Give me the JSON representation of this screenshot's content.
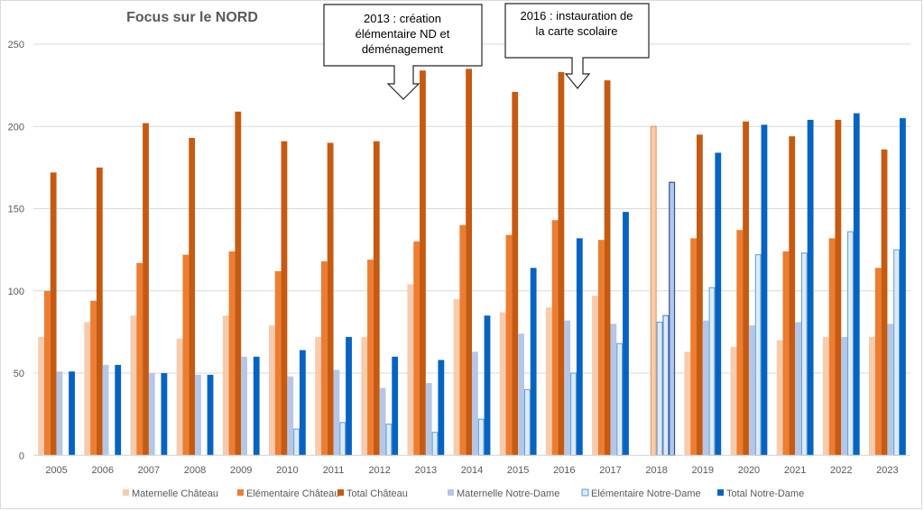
{
  "chart_data": {
    "type": "bar",
    "title": "Focus sur le NORD",
    "xlabel": "",
    "ylabel": "",
    "ylim": [
      0,
      250
    ],
    "yticks": [
      0,
      50,
      100,
      150,
      200,
      250
    ],
    "grid": true,
    "legend_position": "bottom",
    "categories": [
      "2005",
      "2006",
      "2007",
      "2008",
      "2009",
      "2010",
      "2011",
      "2012",
      "2013",
      "2014",
      "2015",
      "2016",
      "2017",
      "2018",
      "2019",
      "2020",
      "2021",
      "2022",
      "2023"
    ],
    "series": [
      {
        "name": "Maternelle Château",
        "color": "#F8CBAD",
        "values": [
          72,
          81,
          85,
          71,
          85,
          79,
          72,
          72,
          104,
          95,
          87,
          90,
          97,
          null,
          63,
          66,
          70,
          72,
          72
        ]
      },
      {
        "name": "Elémentaire Château",
        "color": "#ED7D31",
        "values": [
          100,
          94,
          117,
          122,
          124,
          112,
          118,
          119,
          130,
          140,
          134,
          143,
          131,
          null,
          132,
          137,
          124,
          132,
          114
        ]
      },
      {
        "name": "Total Château",
        "color": "#C55A11",
        "values": [
          172,
          175,
          202,
          193,
          209,
          191,
          190,
          191,
          234,
          235,
          221,
          233,
          228,
          200,
          195,
          203,
          194,
          204,
          186
        ]
      },
      {
        "name": "Maternelle Notre-Dame",
        "color": "#B4C7E7",
        "values": [
          51,
          55,
          50,
          49,
          60,
          48,
          52,
          41,
          44,
          63,
          74,
          82,
          80,
          81,
          82,
          79,
          81,
          72,
          80
        ]
      },
      {
        "name": "Elémentaire Notre-Dame",
        "color": "#DEEBF7",
        "outline": "#5B9BD5",
        "values": [
          null,
          null,
          null,
          null,
          null,
          16,
          20,
          19,
          14,
          22,
          40,
          50,
          68,
          85,
          102,
          122,
          123,
          136,
          125
        ]
      },
      {
        "name": "Total Notre-Dame",
        "color": "#0563C1",
        "values": [
          51,
          55,
          50,
          49,
          60,
          64,
          72,
          60,
          58,
          85,
          114,
          132,
          148,
          166,
          184,
          201,
          204,
          208,
          205
        ]
      }
    ],
    "annotations": [
      {
        "text_lines": [
          "2013 : création",
          "élémentaire ND et",
          "déménagement"
        ],
        "points_to": "2013"
      },
      {
        "text_lines": [
          "2016 : instauration de",
          "la carte scolaire"
        ],
        "points_to": "2016"
      }
    ],
    "highlighted_bars_note": "2018 bars drawn with outlines"
  }
}
